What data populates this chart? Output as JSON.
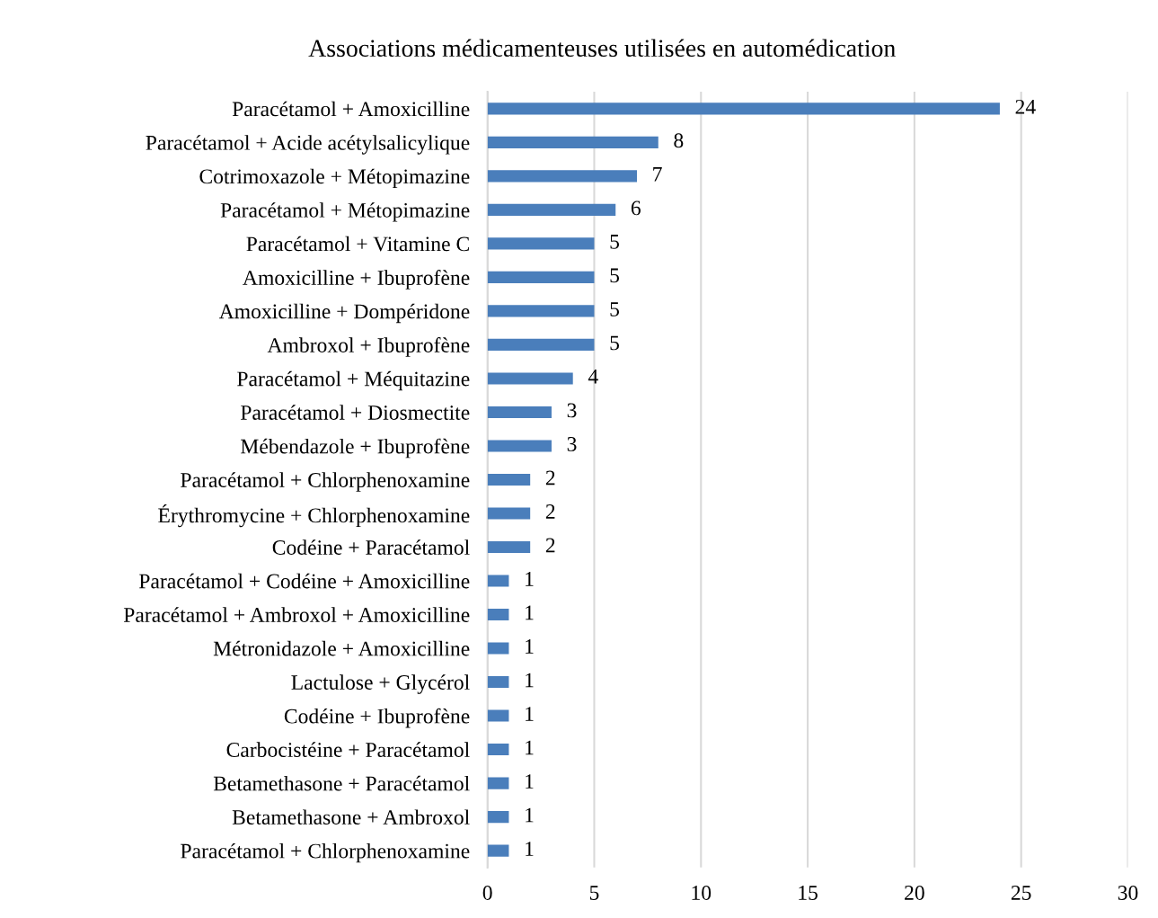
{
  "chart_data": {
    "type": "bar",
    "orientation": "horizontal",
    "title": "Associations médicamenteuses utilisées en automédication",
    "categories": [
      "Paracétamol + Amoxicilline",
      "Paracétamol + Acide acétylsalicylique",
      "Cotrimoxazole + Métopimazine",
      "Paracétamol + Métopimazine",
      "Paracétamol + Vitamine C",
      "Amoxicilline + Ibuprofène",
      "Amoxicilline + Dompéridone",
      "Ambroxol + Ibuprofène",
      "Paracétamol + Méquitazine",
      "Paracétamol + Diosmectite",
      "Mébendazole + Ibuprofène",
      "Paracétamol + Chlorphenoxamine",
      "Érythromycine + Chlorphenoxamine",
      "Codéine + Paracétamol",
      "Paracétamol + Codéine + Amoxicilline",
      "Paracétamol + Ambroxol + Amoxicilline",
      "Métronidazole + Amoxicilline",
      "Lactulose + Glycérol",
      "Codéine + Ibuprofène",
      "Carbocistéine + Paracétamol",
      "Betamethasone + Paracétamol",
      "Betamethasone + Ambroxol",
      "Paracétamol + Chlorphenoxamine"
    ],
    "values": [
      24,
      8,
      7,
      6,
      5,
      5,
      5,
      5,
      4,
      3,
      3,
      2,
      2,
      2,
      1,
      1,
      1,
      1,
      1,
      1,
      1,
      1,
      1
    ],
    "color": "#4a7ebb",
    "xlim": [
      0,
      30
    ],
    "xticks": [
      0,
      5,
      10,
      15,
      20,
      25,
      30
    ],
    "grid": "x",
    "data_labels": true,
    "legend": false
  }
}
